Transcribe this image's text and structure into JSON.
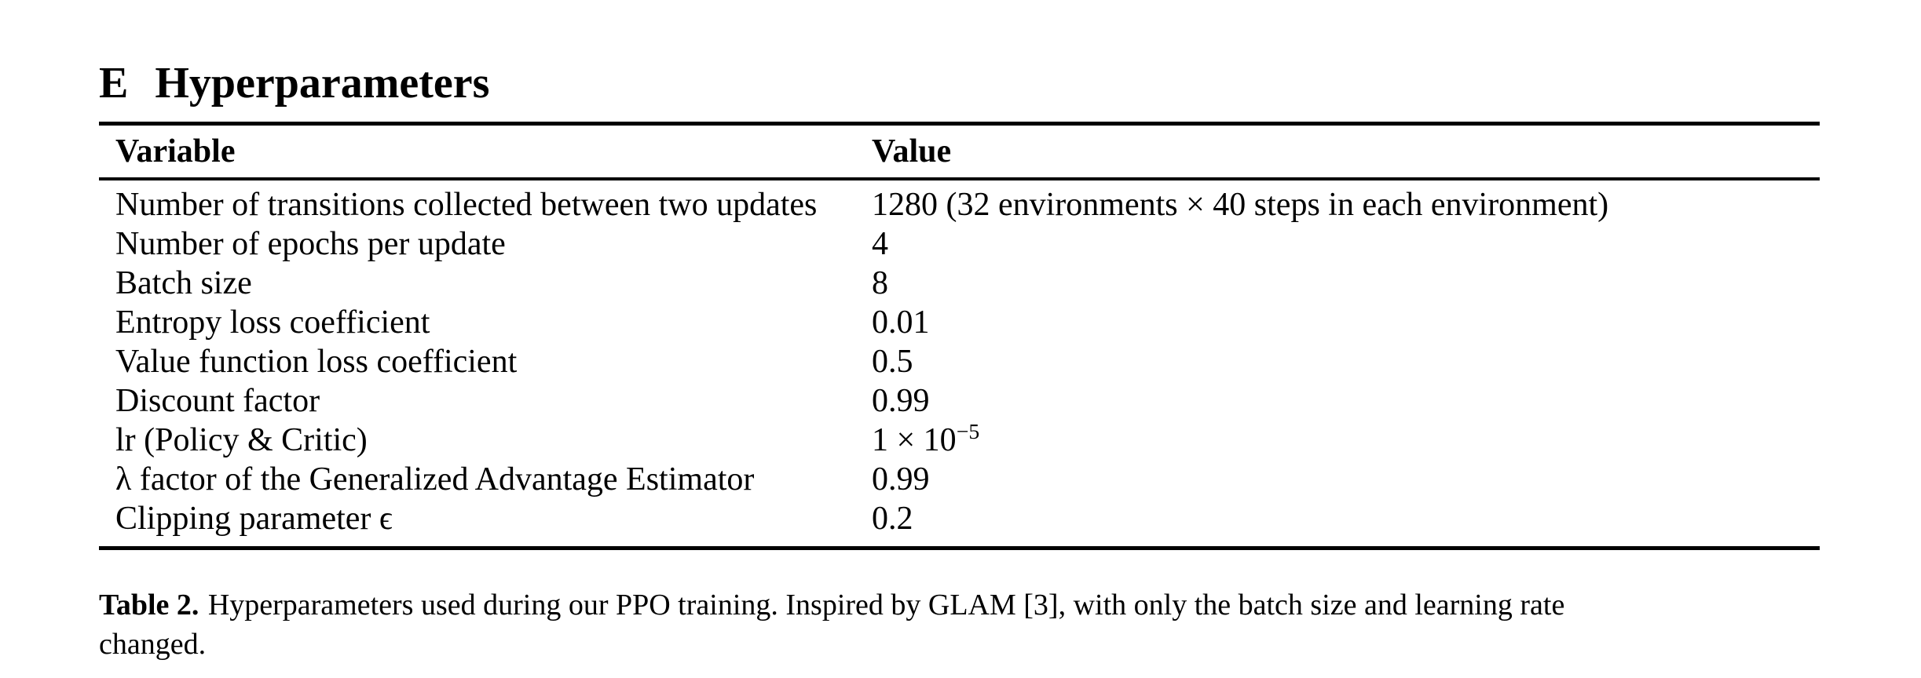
{
  "page": {
    "background_color": "#ffffff",
    "text_color": "#000000"
  },
  "heading": {
    "number": "E",
    "title": "Hyperparameters"
  },
  "table": {
    "columns": [
      "Variable",
      "Value"
    ],
    "rows": [
      {
        "variable": "Number of transitions collected between two updates",
        "value": "1280 (32 environments × 40 steps in each environment)"
      },
      {
        "variable": "Number of epochs per update",
        "value": "4"
      },
      {
        "variable": "Batch size",
        "value": "8"
      },
      {
        "variable": "Entropy loss coefficient",
        "value": "0.01"
      },
      {
        "variable": "Value function loss coefficient",
        "value": "0.5"
      },
      {
        "variable": "Discount factor",
        "value": "0.99"
      },
      {
        "variable": "lr (Policy & Critic)",
        "value": "1 × 10",
        "value_sup": "−5"
      },
      {
        "variable": "λ factor of the Generalized Advantage Estimator",
        "value": "0.99"
      },
      {
        "variable": "Clipping parameter ϵ",
        "value": "0.2"
      }
    ]
  },
  "caption": {
    "label": "Table 2.",
    "line1": "Hyperparameters used during our PPO training. Inspired by GLAM [3], with only the batch size and learning rate",
    "line2": "changed."
  }
}
